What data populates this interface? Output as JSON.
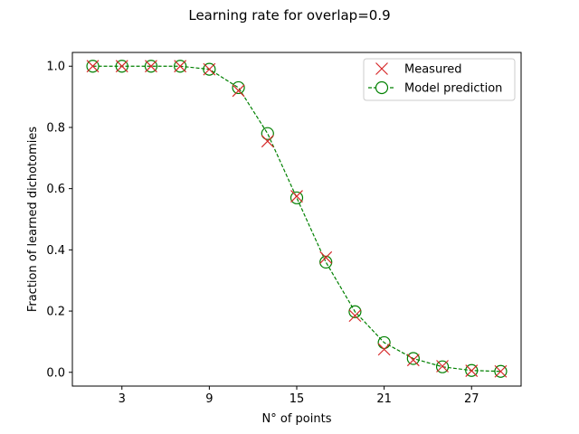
{
  "chart_data": {
    "type": "line",
    "title": "Learning rate for overlap=0.9",
    "xlabel": "N° of points",
    "ylabel": "Fraction of learned dichotomies",
    "xlim": [
      -0.4,
      30.4
    ],
    "ylim": [
      -0.045,
      1.045
    ],
    "xticks": [
      3,
      9,
      15,
      21,
      27
    ],
    "xtick_labels": [
      "3",
      "9",
      "15",
      "21",
      "27"
    ],
    "yticks": [
      0.0,
      0.2,
      0.4,
      0.6,
      0.8,
      1.0
    ],
    "ytick_labels": [
      "0.0",
      "0.2",
      "0.4",
      "0.6",
      "0.8",
      "1.0"
    ],
    "grid": false,
    "legend_position": "upper right",
    "x": [
      1,
      3,
      5,
      7,
      9,
      11,
      13,
      15,
      17,
      19,
      21,
      23,
      25,
      27,
      29
    ],
    "series": [
      {
        "name": "Measured",
        "marker": "x",
        "linestyle": "none",
        "color": "#d62728",
        "values": [
          1.0,
          1.0,
          1.0,
          1.0,
          0.99,
          0.92,
          0.755,
          0.575,
          0.375,
          0.185,
          0.075,
          0.04,
          0.02,
          0.005,
          0.003
        ]
      },
      {
        "name": "Model prediction",
        "marker": "o-open",
        "linestyle": "dashed",
        "color": "#008000",
        "values": [
          1.0,
          1.0,
          1.0,
          1.0,
          0.99,
          0.93,
          0.78,
          0.57,
          0.36,
          0.198,
          0.097,
          0.045,
          0.018,
          0.006,
          0.003
        ]
      }
    ]
  }
}
